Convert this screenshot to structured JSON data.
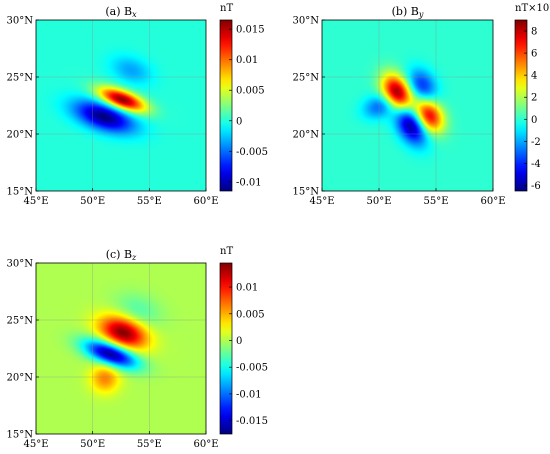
{
  "chart_data": [
    {
      "type": "heatmap",
      "title": "(a) B_x",
      "title_prefix": "(a) B",
      "title_subscript": "x",
      "x_ticks": [
        "45°E",
        "50°E",
        "55°E",
        "60°E"
      ],
      "y_ticks": [
        "15°N",
        "20°N",
        "25°N",
        "30°N"
      ],
      "xlim": [
        45,
        60
      ],
      "ylim": [
        15,
        30
      ],
      "grid": true,
      "colorbar": {
        "label": "nT",
        "range": [
          -0.0115,
          0.0165
        ],
        "ticks": [
          0.015,
          0.01,
          0.005,
          0,
          -0.005,
          -0.01
        ],
        "tick_labels": [
          "0.015",
          "0.01",
          "0.005",
          "0",
          "-0.005",
          "-0.01"
        ]
      },
      "anomalies": [
        {
          "lon": 52.6,
          "lat": 23.0,
          "value": 0.0165,
          "sx": 1.5,
          "sy": 0.55,
          "rot": -20
        },
        {
          "lon": 51.0,
          "lat": 21.5,
          "value": -0.0115,
          "sx": 1.9,
          "sy": 0.8,
          "rot": -18
        },
        {
          "lon": 53.4,
          "lat": 25.6,
          "value": -0.0035,
          "sx": 1.3,
          "sy": 0.8,
          "rot": -20
        }
      ]
    },
    {
      "type": "heatmap",
      "title": "(b) B_y",
      "title_prefix": "(b) B",
      "title_subscript": "y",
      "x_ticks": [
        "45°E",
        "50°E",
        "55°E",
        "60°E"
      ],
      "y_ticks": [
        "15°N",
        "20°N",
        "25°N",
        "30°N"
      ],
      "xlim": [
        45,
        60
      ],
      "ylim": [
        15,
        30
      ],
      "grid": true,
      "colorbar": {
        "label": "nT×10",
        "label_exponent": "−3",
        "range": [
          -6.5,
          9
        ],
        "ticks": [
          8,
          6,
          4,
          2,
          0,
          -2,
          -4,
          -6
        ],
        "tick_labels": [
          "8",
          "6",
          "4",
          "2",
          "0",
          "-2",
          "-4",
          "-6"
        ]
      },
      "anomalies": [
        {
          "lon": 51.6,
          "lat": 23.6,
          "value": 9.0,
          "sx": 0.8,
          "sy": 1.2,
          "rot": 30
        },
        {
          "lon": 54.4,
          "lat": 21.6,
          "value": 7.5,
          "sx": 0.8,
          "sy": 1.1,
          "rot": 30
        },
        {
          "lon": 52.8,
          "lat": 20.8,
          "value": -6.5,
          "sx": 0.8,
          "sy": 1.3,
          "rot": 30
        },
        {
          "lon": 53.8,
          "lat": 24.2,
          "value": -4.0,
          "sx": 0.8,
          "sy": 1.1,
          "rot": 30
        },
        {
          "lon": 50.0,
          "lat": 22.4,
          "value": -3.0,
          "sx": 1.0,
          "sy": 0.7,
          "rot": 20
        }
      ]
    },
    {
      "type": "heatmap",
      "title": "(c) B_z",
      "title_prefix": "(c) B",
      "title_subscript": "z",
      "x_ticks": [
        "45°E",
        "50°E",
        "55°E",
        "60°E"
      ],
      "y_ticks": [
        "15°N",
        "20°N",
        "25°N",
        "30°N"
      ],
      "xlim": [
        45,
        60
      ],
      "ylim": [
        15,
        30
      ],
      "grid": true,
      "colorbar": {
        "label": "nT",
        "range": [
          -0.0175,
          0.0145
        ],
        "ticks": [
          0.01,
          0.005,
          0,
          -0.005,
          -0.01,
          -0.015
        ],
        "tick_labels": [
          "0.01",
          "0.005",
          "0",
          "-0.005",
          "-0.01",
          "-0.015"
        ]
      },
      "anomalies": [
        {
          "lon": 52.7,
          "lat": 23.9,
          "value": 0.0145,
          "sx": 1.5,
          "sy": 0.9,
          "rot": -20
        },
        {
          "lon": 51.6,
          "lat": 22.0,
          "value": -0.0175,
          "sx": 1.7,
          "sy": 0.65,
          "rot": -20
        },
        {
          "lon": 51.1,
          "lat": 19.9,
          "value": 0.0065,
          "sx": 0.9,
          "sy": 0.9,
          "rot": 0
        },
        {
          "lon": 54.0,
          "lat": 25.8,
          "value": -0.003,
          "sx": 1.5,
          "sy": 1.0,
          "rot": -20
        }
      ]
    }
  ]
}
